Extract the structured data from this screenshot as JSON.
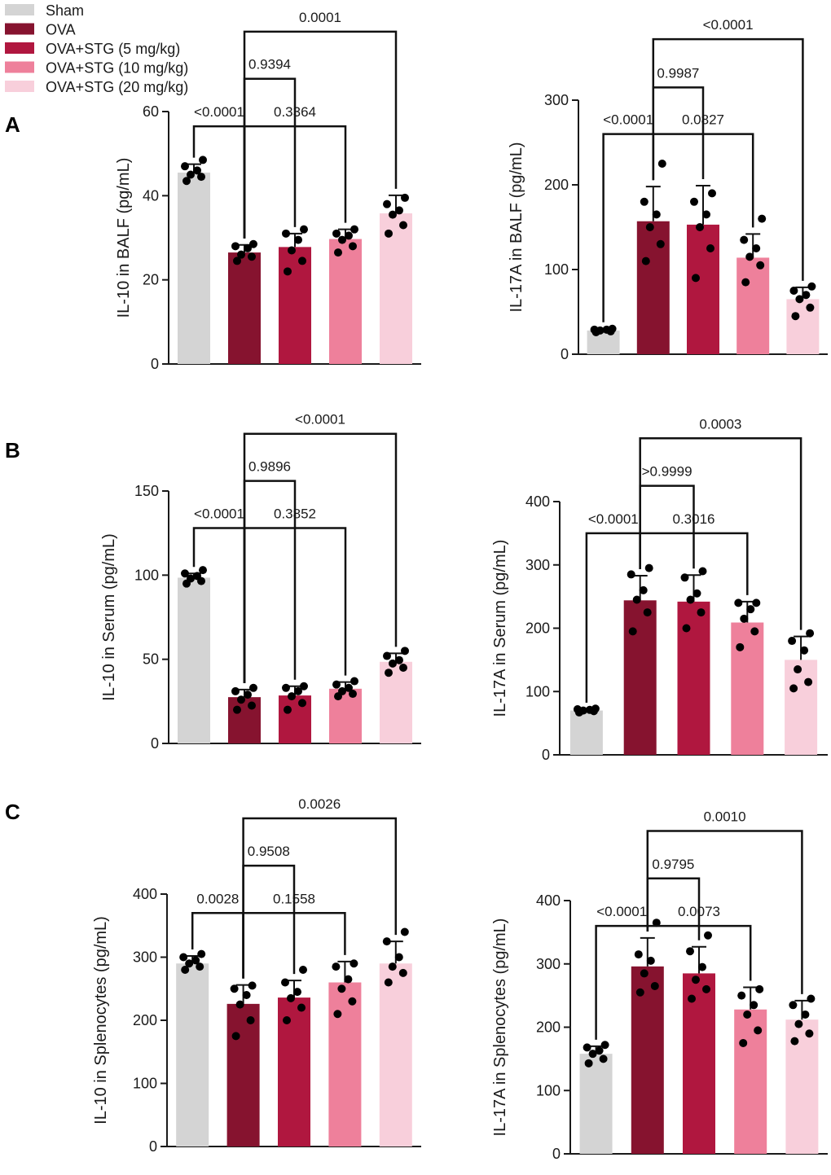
{
  "legend": {
    "items": [
      {
        "name": "Sham",
        "color": "#d4d4d4"
      },
      {
        "name": "OVA",
        "color": "#86132f"
      },
      {
        "name": "OVA+STG (5 mg/kg)",
        "color": "#b0173f"
      },
      {
        "name": "OVA+STG (10 mg/kg)",
        "color": "#ee809b"
      },
      {
        "name": "OVA+STG (20 mg/kg)",
        "color": "#f8cfdb"
      }
    ]
  },
  "panel_labels": [
    "A",
    "B",
    "C"
  ],
  "chart_data": [
    {
      "type": "bar",
      "id": "A-left",
      "ylabel": "IL-10 in BALF (pg/mL)",
      "ylim": [
        0,
        60
      ],
      "yticks": [
        0,
        20,
        40,
        60
      ],
      "categories": [
        "Sham",
        "OVA",
        "OVA+STG (5 mg/kg)",
        "OVA+STG (10 mg/kg)",
        "OVA+STG (20 mg/kg)"
      ],
      "values": [
        45.5,
        26.5,
        27.8,
        29.7,
        35.8
      ],
      "errors": [
        2.0,
        1.8,
        3.2,
        2.3,
        4.3
      ],
      "points": [
        [
          43.5,
          44.5,
          45,
          46,
          47,
          48.5
        ],
        [
          24.5,
          25.5,
          26,
          27.5,
          28,
          28.5
        ],
        [
          22,
          24.5,
          27,
          29.5,
          31,
          32
        ],
        [
          26.5,
          28,
          29.5,
          30.5,
          31,
          32
        ],
        [
          31,
          33,
          35.5,
          36.5,
          38,
          39.5
        ]
      ],
      "comparisons": [
        {
          "from": 0,
          "to": 1,
          "label": "<0.0001",
          "y": 56.5
        },
        {
          "from": 1,
          "to": 3,
          "label": "0.3364",
          "y": 56.5
        },
        {
          "from": 1,
          "to": 2,
          "label": "0.9394",
          "y": 67.8
        },
        {
          "from": 1,
          "to": 4,
          "label": "0.0001",
          "y": 79.0
        }
      ]
    },
    {
      "type": "bar",
      "id": "A-right",
      "ylabel": "IL-17A in BALF (pg/mL)",
      "ylim": [
        0,
        300
      ],
      "yticks": [
        0,
        100,
        200,
        300
      ],
      "categories": [
        "Sham",
        "OVA",
        "OVA+STG (5 mg/kg)",
        "OVA+STG (10 mg/kg)",
        "OVA+STG (20 mg/kg)"
      ],
      "values": [
        28,
        157,
        153,
        114,
        65
      ],
      "errors": [
        2,
        41,
        46,
        28,
        14
      ],
      "points": [
        [
          26,
          27,
          28,
          29,
          29,
          30
        ],
        [
          110,
          130,
          150,
          165,
          180,
          225
        ],
        [
          90,
          125,
          150,
          165,
          180,
          190
        ],
        [
          85,
          105,
          115,
          125,
          135,
          160
        ],
        [
          45,
          55,
          65,
          70,
          75,
          80
        ]
      ],
      "comparisons": [
        {
          "from": 0,
          "to": 1,
          "label": "<0.0001",
          "y": 260
        },
        {
          "from": 1,
          "to": 3,
          "label": "0.0827",
          "y": 260
        },
        {
          "from": 1,
          "to": 2,
          "label": "0.9987",
          "y": 315
        },
        {
          "from": 1,
          "to": 4,
          "label": "<0.0001",
          "y": 372
        }
      ]
    },
    {
      "type": "bar",
      "id": "B-left",
      "ylabel": "IL-10 in Serum (pg/mL)",
      "ylim": [
        0,
        150
      ],
      "yticks": [
        0,
        50,
        100,
        150
      ],
      "categories": [
        "Sham",
        "OVA",
        "OVA+STG (5 mg/kg)",
        "OVA+STG (10 mg/kg)",
        "OVA+STG (20 mg/kg)"
      ],
      "values": [
        98.5,
        27.5,
        28.5,
        32.5,
        48.5
      ],
      "errors": [
        2.5,
        4.5,
        5.5,
        4.0,
        5.0
      ],
      "points": [
        [
          95,
          96.5,
          98,
          99.5,
          101,
          103
        ],
        [
          20,
          22.5,
          26,
          29,
          31,
          33
        ],
        [
          20,
          24,
          28,
          31,
          33,
          34
        ],
        [
          28,
          29.5,
          31,
          33,
          35,
          37
        ],
        [
          42,
          45,
          47.5,
          49.5,
          52,
          55
        ]
      ],
      "comparisons": [
        {
          "from": 0,
          "to": 1,
          "label": "<0.0001",
          "y": 128
        },
        {
          "from": 1,
          "to": 3,
          "label": "0.3852",
          "y": 128
        },
        {
          "from": 1,
          "to": 2,
          "label": "0.9896",
          "y": 156
        },
        {
          "from": 1,
          "to": 4,
          "label": "<0.0001",
          "y": 184
        }
      ]
    },
    {
      "type": "bar",
      "id": "B-right",
      "ylabel": "IL-17A in Serum (pg/mL)",
      "ylim": [
        0,
        400
      ],
      "yticks": [
        0,
        100,
        200,
        300,
        400
      ],
      "categories": [
        "Sham",
        "OVA",
        "OVA+STG (5 mg/kg)",
        "OVA+STG (10 mg/kg)",
        "OVA+STG (20 mg/kg)"
      ],
      "values": [
        70,
        244,
        242,
        209,
        150
      ],
      "errors": [
        2,
        39,
        42,
        33,
        37
      ],
      "points": [
        [
          67,
          69,
          70,
          71,
          72,
          73
        ],
        [
          195,
          225,
          245,
          260,
          285,
          295
        ],
        [
          200,
          225,
          245,
          255,
          280,
          290
        ],
        [
          170,
          195,
          215,
          230,
          240,
          240
        ],
        [
          105,
          115,
          135,
          165,
          180,
          192
        ]
      ],
      "comparisons": [
        {
          "from": 0,
          "to": 1,
          "label": "<0.0001",
          "y": 350
        },
        {
          "from": 1,
          "to": 3,
          "label": "0.3016",
          "y": 350
        },
        {
          "from": 1,
          "to": 2,
          "label": ">0.9999",
          "y": 425
        },
        {
          "from": 1,
          "to": 4,
          "label": "0.0003",
          "y": 500
        }
      ]
    },
    {
      "type": "bar",
      "id": "C-left",
      "ylabel": "IL-10 in Splenocytes  (pg/mL)",
      "ylim": [
        0,
        400
      ],
      "yticks": [
        0,
        100,
        200,
        300,
        400
      ],
      "categories": [
        "Sham",
        "OVA",
        "OVA+STG (5 mg/kg)",
        "OVA+STG (10 mg/kg)",
        "OVA+STG (20 mg/kg)"
      ],
      "values": [
        290,
        226,
        236,
        260,
        290
      ],
      "errors": [
        12,
        30,
        27,
        33,
        35
      ],
      "points": [
        [
          280,
          285,
          290,
          295,
          300,
          305
        ],
        [
          175,
          200,
          225,
          240,
          250,
          255
        ],
        [
          200,
          220,
          235,
          245,
          260,
          280
        ],
        [
          210,
          230,
          250,
          265,
          285,
          290
        ],
        [
          260,
          275,
          285,
          300,
          325,
          340
        ]
      ],
      "comparisons": [
        {
          "from": 0,
          "to": 1,
          "label": "0.0028",
          "y": 370
        },
        {
          "from": 1,
          "to": 3,
          "label": "0.1558",
          "y": 370
        },
        {
          "from": 1,
          "to": 2,
          "label": "0.9508",
          "y": 445
        },
        {
          "from": 1,
          "to": 4,
          "label": "0.0026",
          "y": 520
        }
      ]
    },
    {
      "type": "bar",
      "id": "C-right",
      "ylabel": "IL-17A in Splenocytes  (pg/mL)",
      "ylim": [
        0,
        400
      ],
      "yticks": [
        0,
        100,
        200,
        300,
        400
      ],
      "categories": [
        "Sham",
        "OVA",
        "OVA+STG (5 mg/kg)",
        "OVA+STG (10 mg/kg)",
        "OVA+STG (20 mg/kg)"
      ],
      "values": [
        158,
        296,
        285,
        228,
        212
      ],
      "errors": [
        12,
        45,
        42,
        35,
        30
      ],
      "points": [
        [
          143,
          150,
          158,
          163,
          168,
          172
        ],
        [
          255,
          265,
          285,
          305,
          315,
          365
        ],
        [
          245,
          260,
          275,
          295,
          320,
          345
        ],
        [
          175,
          195,
          220,
          235,
          250,
          260
        ],
        [
          178,
          190,
          205,
          220,
          235,
          245
        ]
      ],
      "comparisons": [
        {
          "from": 0,
          "to": 1,
          "label": "<0.0001",
          "y": 360
        },
        {
          "from": 1,
          "to": 3,
          "label": "0.0073",
          "y": 360
        },
        {
          "from": 1,
          "to": 2,
          "label": "0.9795",
          "y": 435
        },
        {
          "from": 1,
          "to": 4,
          "label": "0.0010",
          "y": 510
        }
      ]
    }
  ]
}
